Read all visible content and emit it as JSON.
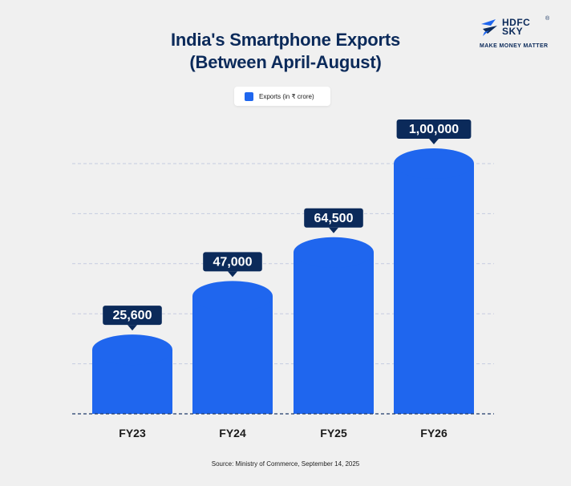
{
  "brand": {
    "name_line1": "HDFC",
    "name_line2": "SKY",
    "registered": "®",
    "tagline": "MAKE MONEY MATTER"
  },
  "colors": {
    "bar": "#1f66ee",
    "bar_top": "#3a7cf2",
    "label_bg": "#0b2a5a",
    "grid": "#c5cbe0",
    "axis": "#1f3a6a",
    "title": "#0b2a5a"
  },
  "chart_data": {
    "type": "bar",
    "title": "India's Smartphone Exports",
    "subtitle": "(Between April-August)",
    "categories": [
      "FY23",
      "FY24",
      "FY25",
      "FY26"
    ],
    "series": [
      {
        "name": "Exports (in ₹ crore)",
        "values": [
          25600,
          47000,
          64500,
          100000
        ],
        "labels": [
          "25,600",
          "47,000",
          "64,500",
          "1,00,000"
        ]
      }
    ],
    "xlabel": "",
    "ylabel": "",
    "ylim": [
      0,
      100000
    ],
    "grid": true,
    "legend": "top-center"
  },
  "source": "Source: Ministry of Commerce, September 14, 2025"
}
